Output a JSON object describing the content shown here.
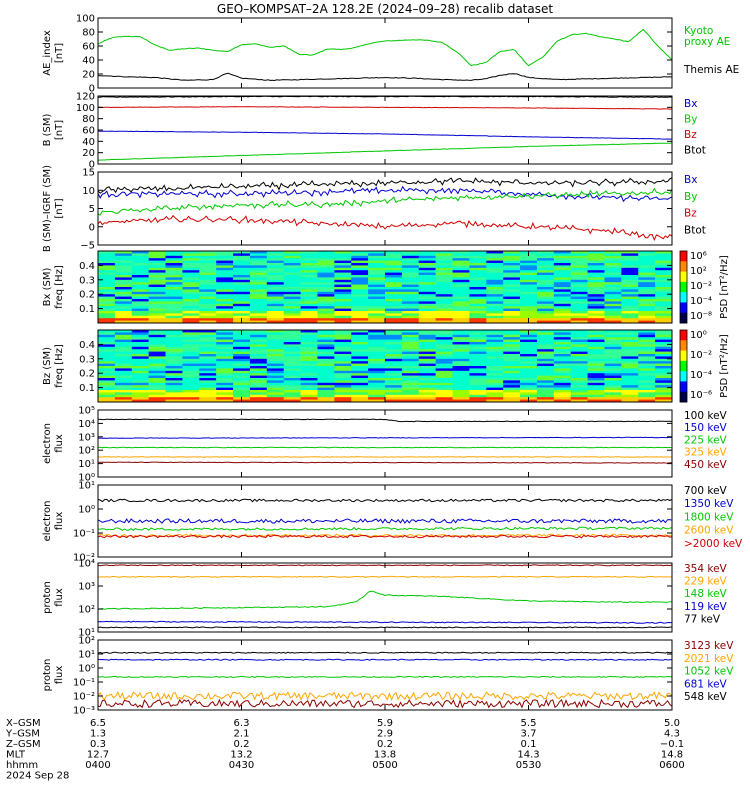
{
  "title": "GEO–KOMPSAT–2A 128.2E (2024–09–28) recalib dataset",
  "colors": {
    "black": "#000000",
    "red": "#d20000",
    "blue": "#0000d0",
    "green": "#00c800",
    "orange": "#ffa500",
    "darkred": "#8b0000",
    "lime": "#33d633"
  },
  "chart_data": [
    {
      "id": "ae",
      "type": "line",
      "ylabel": [
        "AE_index",
        "[nT]"
      ],
      "ylim": [
        0,
        100
      ],
      "yscale": "linear",
      "yticks": [
        "0",
        "20",
        "40",
        "60",
        "80",
        "100"
      ],
      "series": [
        {
          "name": "Kyoto proxy AE",
          "color": "green",
          "legend_lines": [
            "Kyoto",
            "proxy AE"
          ],
          "x": [
            0,
            0.05,
            0.1,
            0.15,
            0.2,
            0.25,
            0.3,
            0.35,
            0.4,
            0.45,
            0.5,
            0.55,
            0.6,
            0.65,
            0.7,
            0.75,
            0.8,
            0.85,
            0.9,
            0.95,
            1.0,
            1.05,
            1.1,
            1.15,
            1.2,
            1.25,
            1.3,
            1.35,
            1.4,
            1.45,
            1.5,
            1.55,
            1.6,
            1.65,
            1.7,
            1.75,
            1.8,
            1.85,
            1.9,
            1.95,
            2.0
          ],
          "y": [
            63,
            72,
            74,
            73,
            61,
            54,
            56,
            57,
            54,
            52,
            62,
            63,
            58,
            60,
            48,
            47,
            56,
            55,
            58,
            64,
            67,
            68,
            69,
            68,
            65,
            52,
            32,
            36,
            52,
            55,
            32,
            44,
            67,
            76,
            78,
            73,
            70,
            66,
            84,
            60,
            40
          ]
        },
        {
          "name": "Themis AE",
          "color": "black",
          "legend_lines": [
            "Themis AE"
          ],
          "x": [
            0,
            0.1,
            0.2,
            0.3,
            0.4,
            0.45,
            0.5,
            0.6,
            0.7,
            0.8,
            0.9,
            1.0,
            1.1,
            1.2,
            1.3,
            1.35,
            1.4,
            1.45,
            1.5,
            1.6,
            1.7,
            1.8,
            1.9,
            2.0
          ],
          "y": [
            18,
            16,
            15,
            11,
            12,
            21,
            14,
            11,
            12,
            13,
            14,
            15,
            14,
            12,
            11,
            13,
            18,
            21,
            15,
            12,
            13,
            14,
            15,
            16
          ]
        }
      ]
    },
    {
      "id": "bsm",
      "type": "line",
      "ylabel": [
        "B (SM)",
        "[nT]"
      ],
      "ylim": [
        0,
        120
      ],
      "yscale": "linear",
      "yticks": [
        "0",
        "20",
        "40",
        "60",
        "80",
        "100",
        "120"
      ],
      "series": [
        {
          "name": "Bx",
          "color": "blue",
          "x": [
            0,
            0.5,
            1.0,
            1.5,
            2.0
          ],
          "y": [
            58,
            56,
            53,
            48,
            44
          ]
        },
        {
          "name": "By",
          "color": "green",
          "x": [
            0,
            0.5,
            1.0,
            1.5,
            2.0
          ],
          "y": [
            7,
            15,
            23,
            31,
            37
          ]
        },
        {
          "name": "Bz",
          "color": "red",
          "x": [
            0,
            0.5,
            1.0,
            1.5,
            2.0
          ],
          "y": [
            100,
            101,
            100,
            99,
            97
          ]
        },
        {
          "name": "Btot",
          "color": "black",
          "x": [
            0,
            0.5,
            1.0,
            1.5,
            2.0
          ],
          "y": [
            118,
            119,
            119,
            119,
            118
          ]
        }
      ]
    },
    {
      "id": "bigrf",
      "type": "line",
      "ylabel": [
        "B (SM)–IGRF (SM)",
        "[nT]"
      ],
      "ylim": [
        -5,
        15
      ],
      "yscale": "linear",
      "yticks": [
        "−5",
        "0",
        "5",
        "10",
        "15"
      ],
      "series": [
        {
          "name": "Bx",
          "color": "blue",
          "x": [
            0,
            0.25,
            0.5,
            0.75,
            1.0,
            1.25,
            1.5,
            1.75,
            2.0
          ],
          "y": [
            9,
            9,
            9,
            9.5,
            10,
            10,
            9,
            8,
            7.5
          ]
        },
        {
          "name": "By",
          "color": "green",
          "x": [
            0,
            0.25,
            0.5,
            0.75,
            1.0,
            1.25,
            1.5,
            1.75,
            2.0
          ],
          "y": [
            4,
            5,
            6,
            6,
            7,
            8,
            8.5,
            9,
            9.5
          ]
        },
        {
          "name": "Bz",
          "color": "red",
          "x": [
            0,
            0.25,
            0.5,
            0.75,
            1.0,
            1.25,
            1.5,
            1.75,
            2.0
          ],
          "y": [
            1,
            2,
            2,
            1,
            0,
            1,
            0,
            -1,
            -3
          ]
        },
        {
          "name": "Btot",
          "color": "black",
          "x": [
            0,
            0.25,
            0.5,
            0.75,
            1.0,
            1.25,
            1.5,
            1.75,
            2.0
          ],
          "y": [
            10,
            10.5,
            11,
            11.5,
            12,
            12.5,
            12,
            12,
            12.5
          ]
        }
      ]
    },
    {
      "id": "bxspec",
      "type": "heatmap",
      "ylabel": [
        "Bx (SM)",
        "freq [Hz]"
      ],
      "ylim": [
        0,
        0.5
      ],
      "yticks": [
        "0.1",
        "0.2",
        "0.3",
        "0.4"
      ],
      "colorbar": {
        "label": "PSD [nT²/Hz]",
        "ticks": [
          "10⁶",
          "10²",
          "10⁻²",
          "10⁻⁴",
          "10⁻⁸"
        ]
      }
    },
    {
      "id": "bzspec",
      "type": "heatmap",
      "ylabel": [
        "Bz (SM)",
        "freq [Hz]"
      ],
      "ylim": [
        0,
        0.5
      ],
      "yticks": [
        "0.1",
        "0.2",
        "0.3",
        "0.4"
      ],
      "colorbar": {
        "label": "PSD [nT²/Hz]",
        "ticks": [
          "10⁰",
          "10⁻²",
          "10⁻⁴",
          "10⁻⁶"
        ]
      }
    },
    {
      "id": "eflux1",
      "type": "line",
      "ylabel": [
        "electron",
        "flux"
      ],
      "ylim_log": [
        0,
        5
      ],
      "yscale": "log",
      "yticks": [
        "10⁰",
        "10¹",
        "10²",
        "10³",
        "10⁴",
        "10⁵"
      ],
      "series": [
        {
          "name": "100 keV",
          "color": "black",
          "x": [
            0,
            1.0,
            1.05,
            2.0
          ],
          "y": [
            4.3,
            4.3,
            4.15,
            4.15
          ]
        },
        {
          "name": "150 keV",
          "color": "blue",
          "x": [
            0,
            2.0
          ],
          "y": [
            2.9,
            2.95
          ]
        },
        {
          "name": "225 keV",
          "color": "green",
          "x": [
            0,
            2.0
          ],
          "y": [
            2.2,
            2.2
          ]
        },
        {
          "name": "325 keV",
          "color": "orange",
          "x": [
            0,
            2.0
          ],
          "y": [
            1.5,
            1.5
          ]
        },
        {
          "name": "450 keV",
          "color": "darkred",
          "x": [
            0,
            2.0
          ],
          "y": [
            1.1,
            1.05
          ]
        }
      ]
    },
    {
      "id": "eflux2",
      "type": "line",
      "ylabel": [
        "electron",
        "flux"
      ],
      "ylim_log": [
        -2.5,
        1
      ],
      "yscale": "log",
      "yticks": [
        "10⁻²",
        "10⁻¹",
        "10⁰",
        "10¹"
      ],
      "series": [
        {
          "name": "700 keV",
          "color": "black",
          "x": [
            0,
            2.0
          ],
          "y": [
            0.25,
            0.25
          ]
        },
        {
          "name": "1350 keV",
          "color": "blue",
          "x": [
            0,
            2.0
          ],
          "y": [
            -0.75,
            -0.75
          ]
        },
        {
          "name": "1800 keV",
          "color": "green",
          "x": [
            0,
            2.0
          ],
          "y": [
            -1.15,
            -1.1
          ]
        },
        {
          "name": "2600 keV",
          "color": "orange",
          "x": [
            0,
            2.0
          ],
          "y": [
            -1.45,
            -1.45
          ]
        },
        {
          "name": ">2000 keV",
          "color": "red",
          "x": [
            0,
            2.0
          ],
          "y": [
            -1.5,
            -1.5
          ]
        }
      ]
    },
    {
      "id": "pflux1",
      "type": "line",
      "ylabel": [
        "proton",
        "flux"
      ],
      "ylim_log": [
        1,
        4
      ],
      "yscale": "log",
      "yticks": [
        "10¹",
        "10²",
        "10³",
        "10⁴"
      ],
      "series": [
        {
          "name": "354 keV",
          "color": "darkred",
          "x": [
            0,
            2.0
          ],
          "y": [
            3.9,
            3.9
          ]
        },
        {
          "name": "229 keV",
          "color": "orange",
          "x": [
            0,
            2.0
          ],
          "y": [
            3.4,
            3.4
          ]
        },
        {
          "name": "148 keV",
          "color": "green",
          "x": [
            0,
            0.8,
            0.9,
            0.95,
            1.0,
            1.2,
            1.5,
            1.8,
            2.0
          ],
          "y": [
            2.0,
            2.1,
            2.3,
            2.8,
            2.6,
            2.55,
            2.35,
            2.3,
            2.3
          ]
        },
        {
          "name": "119 keV",
          "color": "blue",
          "x": [
            0,
            2.0
          ],
          "y": [
            1.45,
            1.4
          ]
        },
        {
          "name": "77 keV",
          "color": "black",
          "x": [
            0,
            2.0
          ],
          "y": [
            1.2,
            1.2
          ]
        }
      ]
    },
    {
      "id": "pflux2",
      "type": "line",
      "ylabel": [
        "proton",
        "flux"
      ],
      "ylim_log": [
        -3.5,
        2
      ],
      "yscale": "log",
      "yticks": [
        "10⁻³",
        "10⁻²",
        "10⁻¹",
        "10⁰",
        "10¹",
        "10²"
      ],
      "series": [
        {
          "name": "3123 keV",
          "color": "darkred",
          "x": [
            0,
            2.0
          ],
          "y": [
            -3.0,
            -3.0
          ]
        },
        {
          "name": "2021 keV",
          "color": "orange",
          "x": [
            0,
            2.0
          ],
          "y": [
            -2.4,
            -2.4
          ]
        },
        {
          "name": "1052 keV",
          "color": "green",
          "x": [
            0,
            2.0
          ],
          "y": [
            -0.9,
            -0.9
          ]
        },
        {
          "name": "681 keV",
          "color": "blue",
          "x": [
            0,
            2.0
          ],
          "y": [
            0.45,
            0.45
          ]
        },
        {
          "name": "548 keV",
          "color": "black",
          "x": [
            0,
            2.0
          ],
          "y": [
            1.0,
            1.0
          ]
        }
      ]
    }
  ],
  "x_axis": {
    "ticks_hhmm": [
      "0400",
      "0430",
      "0500",
      "0530",
      "0600"
    ],
    "rows": [
      {
        "label": "X–GSM",
        "values": [
          "6.5",
          "6.3",
          "5.9",
          "5.5",
          "5.0"
        ]
      },
      {
        "label": "Y–GSM",
        "values": [
          "1.3",
          "2.1",
          "2.9",
          "3.7",
          "4.3"
        ]
      },
      {
        "label": "Z–GSM",
        "values": [
          "0.3",
          "0.2",
          "0.2",
          "0.1",
          "−0.1"
        ]
      },
      {
        "label": "MLT",
        "values": [
          "12.7",
          "13.2",
          "13.8",
          "14.3",
          "14.8"
        ]
      },
      {
        "label": "hhmm",
        "values": [
          "0400",
          "0430",
          "0500",
          "0530",
          "0600"
        ]
      }
    ],
    "date": "2024 Sep 28"
  }
}
